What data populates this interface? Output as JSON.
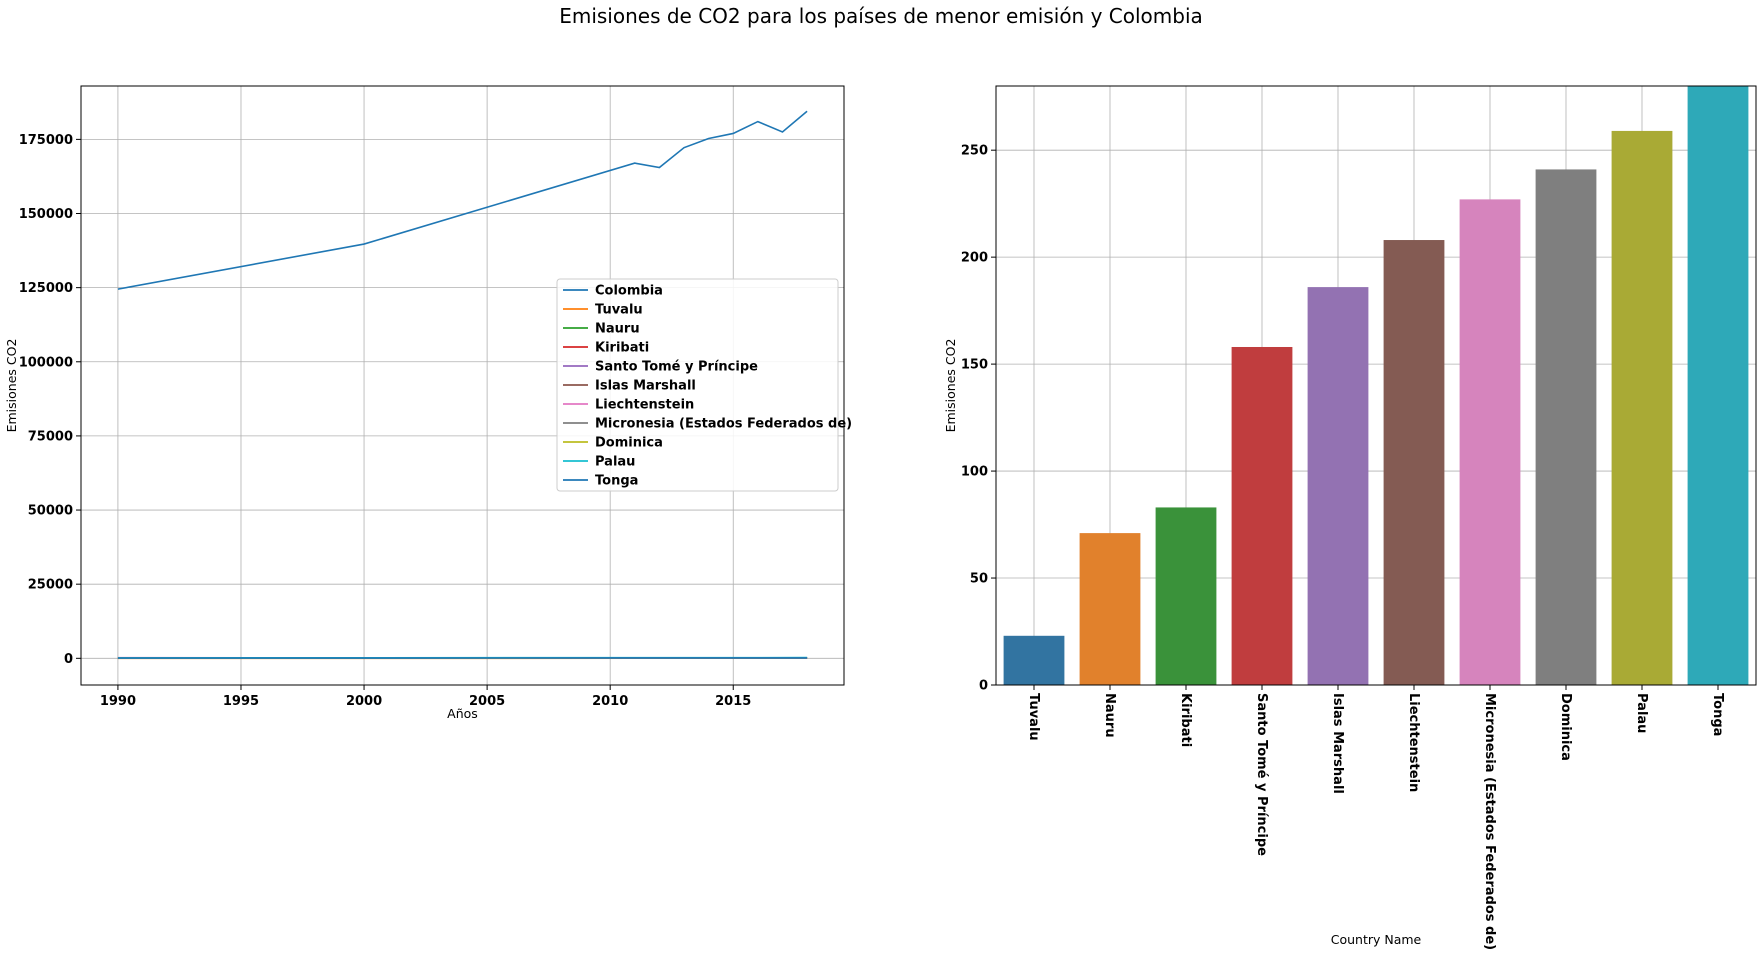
{
  "figure": {
    "title": "Emisiones de CO2 para los países de menor emisión y Colombia"
  },
  "chart_data": [
    {
      "type": "line",
      "xlabel": "Años",
      "ylabel": "Emisiones CO2",
      "xlim": [
        1988.5,
        2019.5
      ],
      "ylim": [
        -9000,
        193000
      ],
      "xticks": [
        1990,
        1995,
        2000,
        2005,
        2010,
        2015
      ],
      "yticks": [
        0,
        25000,
        50000,
        75000,
        100000,
        125000,
        150000,
        175000
      ],
      "grid": true,
      "legend_position": "center-right",
      "x": [
        1990,
        2000,
        2011,
        2012,
        2013,
        2014,
        2015,
        2016,
        2017,
        2018
      ],
      "series": [
        {
          "name": "Colombia",
          "color": "#1f77b4",
          "x": [
            1990,
            2000,
            2011,
            2012,
            2013,
            2014,
            2015,
            2016,
            2017,
            2018
          ],
          "values": [
            124500,
            139700,
            167000,
            165500,
            172200,
            175300,
            177000,
            181000,
            177500,
            184500
          ]
        },
        {
          "name": "Tuvalu",
          "color": "#ff7f0e",
          "x": [
            1990,
            2018
          ],
          "values": [
            10,
            20
          ]
        },
        {
          "name": "Nauru",
          "color": "#2ca02c",
          "x": [
            1990,
            2018
          ],
          "values": [
            60,
            70
          ]
        },
        {
          "name": "Kiribati",
          "color": "#d62728",
          "x": [
            1990,
            2018
          ],
          "values": [
            30,
            70
          ]
        },
        {
          "name": "Santo Tomé y Príncipe",
          "color": "#9467bd",
          "x": [
            1990,
            2018
          ],
          "values": [
            60,
            160
          ]
        },
        {
          "name": "Islas Marshall",
          "color": "#8c564b",
          "x": [
            1990,
            2018
          ],
          "values": [
            80,
            160
          ]
        },
        {
          "name": "Liechtenstein",
          "color": "#e377c2",
          "x": [
            1990,
            2018
          ],
          "values": [
            200,
            170
          ]
        },
        {
          "name": "Micronesia (Estados Federados de)",
          "color": "#7f7f7f",
          "x": [
            1990,
            2018
          ],
          "values": [
            130,
            150
          ]
        },
        {
          "name": "Dominica",
          "color": "#bcbd22",
          "x": [
            1990,
            2018
          ],
          "values": [
            80,
            170
          ]
        },
        {
          "name": "Palau",
          "color": "#17becf",
          "x": [
            1990,
            2018
          ],
          "values": [
            140,
            240
          ]
        },
        {
          "name": "Tonga",
          "color": "#1f77b4",
          "x": [
            1990,
            2018
          ],
          "values": [
            70,
            130
          ]
        }
      ]
    },
    {
      "type": "bar",
      "xlabel": "Country Name",
      "ylabel": "Emisiones CO2",
      "ylim": [
        0,
        280
      ],
      "yticks": [
        0,
        50,
        100,
        150,
        200,
        250
      ],
      "grid": true,
      "categories": [
        "Tuvalu",
        "Nauru",
        "Kiribati",
        "Santo Tomé y Príncipe",
        "Islas Marshall",
        "Liechtenstein",
        "Micronesia (Estados Federados de)",
        "Dominica",
        "Palau",
        "Tonga"
      ],
      "values": [
        23,
        71,
        83,
        158,
        186,
        208,
        227,
        241,
        259,
        280
      ],
      "colors": [
        "#3274a1",
        "#e1812c",
        "#3a923a",
        "#c03d3e",
        "#9372b2",
        "#845b53",
        "#d684bd",
        "#7f7f7f",
        "#a9aa35",
        "#2ea9b8"
      ]
    }
  ]
}
